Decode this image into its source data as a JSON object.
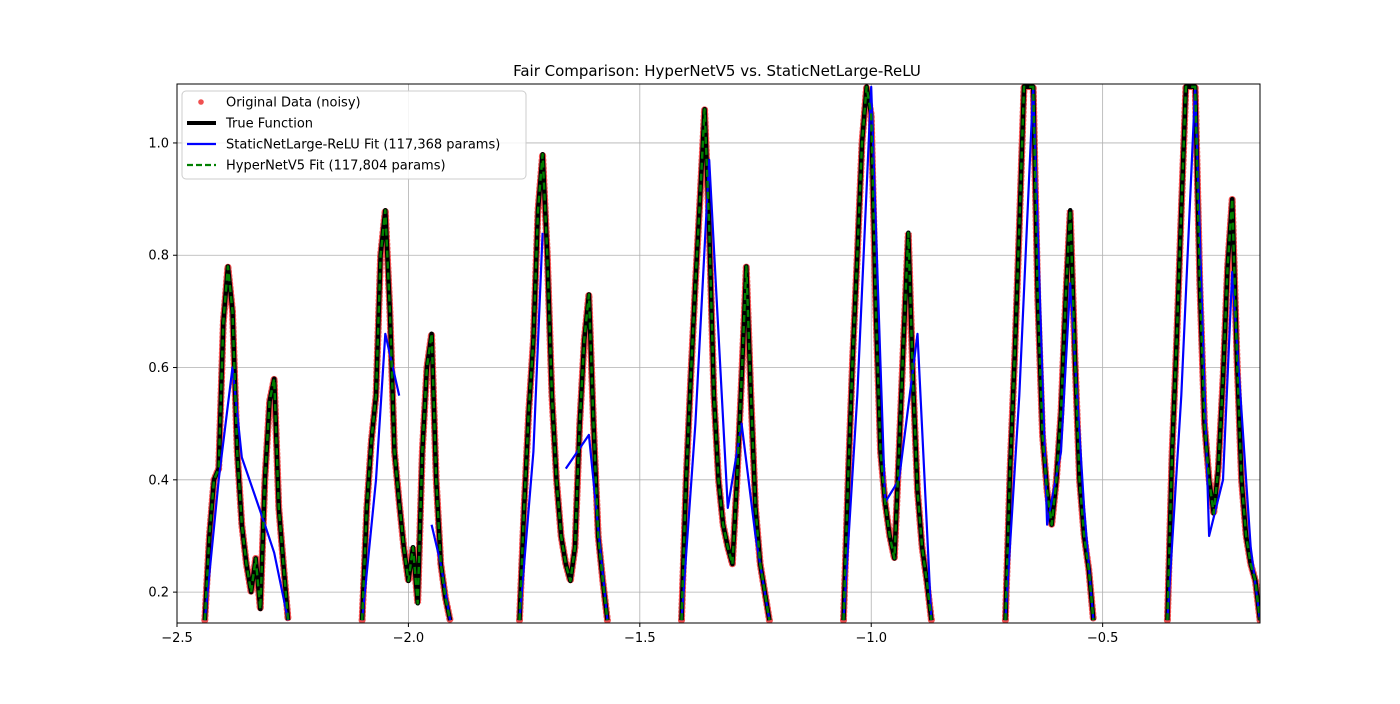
{
  "chart_data": {
    "type": "line",
    "title": "Fair Comparison: HyperNetV5 vs. StaticNetLarge-ReLU",
    "xlabel": "",
    "ylabel": "",
    "xlim": [
      -2.5,
      -0.16
    ],
    "ylim": [
      0.145,
      1.105
    ],
    "xticks": [
      -2.5,
      -2.0,
      -1.5,
      -1.0,
      -0.5
    ],
    "xtick_labels": [
      "−2.5",
      "−2.0",
      "−1.5",
      "−1.0",
      "−0.5"
    ],
    "yticks": [
      0.2,
      0.4,
      0.6,
      0.8,
      1.0
    ],
    "ytick_labels": [
      "0.2",
      "0.4",
      "0.6",
      "0.8",
      "1.0"
    ],
    "grid": true,
    "legend_position": "top-left",
    "legend": [
      {
        "label": "Original Data (noisy)",
        "color": "#f05050",
        "style": "dots"
      },
      {
        "label": "True Function",
        "color": "#000000",
        "style": "thick-solid"
      },
      {
        "label": "StaticNetLarge-ReLU Fit (117,368 params)",
        "color": "#0000ff",
        "style": "solid"
      },
      {
        "label": "HyperNetV5 Fit (117,804 params)",
        "color": "#008000",
        "style": "dashed"
      }
    ],
    "true_function_keypoints": {
      "x": [
        -2.44,
        -2.43,
        -2.42,
        -2.41,
        -2.4,
        -2.39,
        -2.38,
        -2.37,
        -2.36,
        -2.35,
        -2.34,
        -2.33,
        -2.32,
        -2.31,
        -2.3,
        -2.29,
        -2.28,
        -2.27,
        -2.26,
        -2.1,
        -2.09,
        -2.08,
        -2.07,
        -2.06,
        -2.05,
        -2.04,
        -2.03,
        -2.02,
        -2.01,
        -2.0,
        -1.99,
        -1.98,
        -1.97,
        -1.96,
        -1.95,
        -1.94,
        -1.93,
        -1.92,
        -1.91,
        -1.76,
        -1.75,
        -1.74,
        -1.73,
        -1.72,
        -1.71,
        -1.7,
        -1.69,
        -1.68,
        -1.67,
        -1.66,
        -1.65,
        -1.64,
        -1.63,
        -1.62,
        -1.61,
        -1.6,
        -1.59,
        -1.58,
        -1.57,
        -1.41,
        -1.4,
        -1.39,
        -1.38,
        -1.37,
        -1.36,
        -1.35,
        -1.34,
        -1.33,
        -1.32,
        -1.31,
        -1.3,
        -1.29,
        -1.28,
        -1.27,
        -1.26,
        -1.25,
        -1.24,
        -1.23,
        -1.22,
        -1.06,
        -1.05,
        -1.04,
        -1.03,
        -1.02,
        -1.01,
        -1.0,
        -0.99,
        -0.98,
        -0.97,
        -0.96,
        -0.95,
        -0.94,
        -0.93,
        -0.92,
        -0.91,
        -0.9,
        -0.89,
        -0.88,
        -0.87,
        -0.71,
        -0.7,
        -0.69,
        -0.68,
        -0.67,
        -0.66,
        -0.65,
        -0.64,
        -0.63,
        -0.62,
        -0.61,
        -0.6,
        -0.59,
        -0.58,
        -0.57,
        -0.56,
        -0.55,
        -0.54,
        -0.53,
        -0.52,
        -0.36,
        -0.35,
        -0.34,
        -0.33,
        -0.32,
        -0.31,
        -0.3,
        -0.29,
        -0.28,
        -0.27,
        -0.26,
        -0.25,
        -0.24,
        -0.23,
        -0.22,
        -0.21,
        -0.2,
        -0.19,
        -0.18,
        -0.17,
        -0.16
      ],
      "y": [
        0.15,
        0.3,
        0.4,
        0.42,
        0.68,
        0.78,
        0.7,
        0.45,
        0.32,
        0.25,
        0.2,
        0.26,
        0.17,
        0.4,
        0.54,
        0.58,
        0.35,
        0.25,
        0.15,
        0.15,
        0.35,
        0.47,
        0.55,
        0.8,
        0.88,
        0.7,
        0.45,
        0.36,
        0.28,
        0.22,
        0.28,
        0.18,
        0.45,
        0.6,
        0.66,
        0.4,
        0.25,
        0.19,
        0.15,
        0.15,
        0.35,
        0.52,
        0.65,
        0.88,
        0.98,
        0.8,
        0.55,
        0.4,
        0.3,
        0.25,
        0.22,
        0.28,
        0.5,
        0.65,
        0.73,
        0.5,
        0.3,
        0.22,
        0.15,
        0.15,
        0.4,
        0.58,
        0.75,
        0.9,
        1.06,
        0.85,
        0.55,
        0.4,
        0.32,
        0.28,
        0.25,
        0.4,
        0.58,
        0.78,
        0.55,
        0.35,
        0.25,
        0.2,
        0.15,
        0.15,
        0.4,
        0.62,
        0.8,
        1.0,
        1.1,
        1.05,
        0.7,
        0.45,
        0.36,
        0.3,
        0.26,
        0.45,
        0.65,
        0.84,
        0.58,
        0.38,
        0.28,
        0.22,
        0.15,
        0.15,
        0.42,
        0.62,
        0.85,
        1.1,
        1.1,
        1.1,
        0.72,
        0.48,
        0.38,
        0.32,
        0.4,
        0.52,
        0.72,
        0.88,
        0.62,
        0.4,
        0.3,
        0.24,
        0.15,
        0.15,
        0.45,
        0.65,
        0.88,
        1.1,
        1.1,
        1.1,
        0.75,
        0.5,
        0.4,
        0.34,
        0.42,
        0.58,
        0.78,
        0.9,
        0.62,
        0.4,
        0.3,
        0.25,
        0.22,
        0.15
      ]
    },
    "static_relu_fit": {
      "x": [
        -2.44,
        -2.41,
        -2.38,
        -2.36,
        -2.31,
        -2.29,
        -2.26,
        -2.1,
        -2.07,
        -2.05,
        -2.02,
        -1.95,
        -1.93,
        -1.91,
        -1.76,
        -1.73,
        -1.71,
        -1.66,
        -1.61,
        -1.57,
        -1.41,
        -1.38,
        -1.35,
        -1.31,
        -1.28,
        -1.25,
        -1.22,
        -1.06,
        -1.03,
        -1.0,
        -0.97,
        -0.94,
        -0.9,
        -0.87,
        -0.71,
        -0.68,
        -0.65,
        -0.62,
        -0.59,
        -0.57,
        -0.54,
        -0.52,
        -0.36,
        -0.33,
        -0.3,
        -0.27,
        -0.24,
        -0.22,
        -0.19,
        -0.18,
        -0.16
      ],
      "y": [
        0.15,
        0.4,
        0.6,
        0.44,
        0.32,
        0.27,
        0.15,
        0.15,
        0.4,
        0.66,
        0.55,
        0.32,
        0.25,
        0.15,
        0.15,
        0.45,
        0.84,
        0.42,
        0.48,
        0.15,
        0.15,
        0.5,
        0.97,
        0.35,
        0.5,
        0.3,
        0.15,
        0.15,
        0.55,
        1.1,
        0.36,
        0.4,
        0.66,
        0.15,
        0.15,
        0.55,
        1.1,
        0.32,
        0.45,
        0.75,
        0.35,
        0.15,
        0.15,
        0.55,
        1.1,
        0.3,
        0.4,
        0.77,
        0.4,
        0.28,
        0.15
      ]
    }
  }
}
